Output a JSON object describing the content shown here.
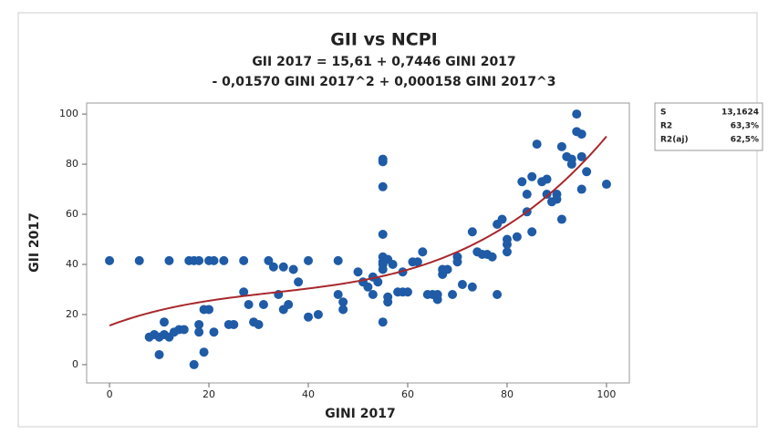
{
  "chart_data": {
    "type": "scatter",
    "title": "GII vs NCPI",
    "subtitle": [
      "GII 2017 = 15,61 + 0,7446 GINI 2017",
      "- 0,01570 GINI 2017^2 + 0,000158 GINI 2017^3"
    ],
    "x_label": "GINI 2017",
    "y_label": "GII 2017",
    "color": "#1f5ba6",
    "fit_color": "#a8282c",
    "fit": [
      15.61,
      0.7446,
      -0.0157,
      0.000158
    ],
    "x": [
      0,
      6,
      12,
      16,
      17,
      18,
      20,
      21,
      23,
      27,
      32,
      40,
      46,
      8,
      9,
      10,
      10,
      11,
      11,
      12,
      13,
      14,
      15,
      17,
      18,
      18,
      19,
      19,
      20,
      21,
      24,
      25,
      27,
      28,
      29,
      30,
      31,
      33,
      34,
      35,
      35,
      36,
      37,
      38,
      40,
      42,
      46,
      47,
      47,
      50,
      51,
      52,
      53,
      53,
      54,
      55,
      55,
      55,
      55,
      55,
      55,
      55,
      55,
      55,
      56,
      56,
      56,
      57,
      58,
      59,
      59,
      60,
      61,
      62,
      63,
      64,
      65,
      66,
      66,
      67,
      67,
      68,
      69,
      70,
      70,
      71,
      73,
      73,
      74,
      75,
      76,
      77,
      78,
      78,
      79,
      80,
      80,
      80,
      82,
      83,
      84,
      84,
      85,
      85,
      86,
      87,
      88,
      88,
      89,
      90,
      91,
      91,
      92,
      93,
      94,
      94,
      95,
      95,
      95,
      96,
      100,
      93,
      90
    ],
    "values": [
      41.5,
      41.5,
      41.5,
      41.5,
      41.5,
      41.5,
      41.5,
      41.5,
      41.5,
      41.5,
      41.5,
      41.5,
      41.5,
      11,
      12,
      4,
      11,
      12,
      17,
      11,
      13,
      14,
      14,
      0,
      16,
      13,
      5,
      22,
      22,
      13,
      16,
      16,
      29,
      24,
      17,
      16,
      24,
      39,
      28,
      22,
      39,
      24,
      38,
      33,
      19,
      20,
      28,
      22,
      25,
      37,
      33,
      31,
      35,
      28,
      33,
      82,
      81,
      71,
      52,
      43,
      41,
      40,
      38,
      17,
      42,
      25,
      27,
      40,
      29,
      29,
      37,
      29,
      41,
      41,
      45,
      28,
      28,
      26,
      28,
      36,
      38,
      38,
      28,
      43,
      41,
      32,
      53,
      31,
      45,
      44,
      44,
      43,
      56,
      28,
      58,
      50,
      45,
      48,
      51,
      73,
      68,
      61,
      75,
      53,
      88,
      73,
      74,
      68,
      65,
      68,
      87,
      58,
      83,
      82,
      93,
      100,
      83,
      70,
      92,
      77,
      72,
      80,
      66
    ],
    "xlim": [
      -4.6,
      104.6
    ],
    "ylim": [
      -7.3,
      104.4
    ],
    "xticks": [
      0,
      20,
      40,
      60,
      80,
      100
    ],
    "yticks": [
      0,
      20,
      40,
      60,
      80,
      100
    ],
    "stats": [
      [
        "S",
        "13,1624"
      ],
      [
        "R2",
        "63,3%"
      ],
      [
        "R2(aj)",
        "62,5%"
      ]
    ]
  }
}
